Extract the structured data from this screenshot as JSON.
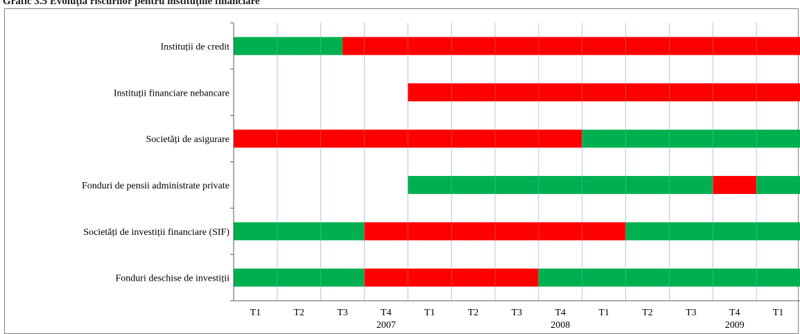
{
  "chart_data": {
    "type": "bar",
    "title": "Grafic 3.5 Evoluția riscurilor pentru instituțiile financiare",
    "categories": [
      "Instituții de credit",
      "Instituții financiare nebancare",
      "Societăți de asigurare",
      "Fonduri de pensii administrate private",
      "Societăți de investiții financiare (SIF)",
      "Fonduri deschise de investiții"
    ],
    "x_ticks": [
      "T1",
      "T2",
      "T3",
      "T4",
      "T1",
      "T2",
      "T3",
      "T4",
      "T1",
      "T2",
      "T3",
      "T4",
      "T1"
    ],
    "year_labels": [
      {
        "label": "2007",
        "quarter_index": 3
      },
      {
        "label": "2008",
        "quarter_index": 7
      },
      {
        "label": "2009",
        "quarter_index": 11
      }
    ],
    "series": [
      {
        "name": "",
        "color": "#00b050"
      },
      {
        "name": "",
        "color": "#ff0000"
      }
    ],
    "rows": [
      {
        "segments": [
          {
            "from": 0,
            "to": 2.5,
            "color": "#00b050"
          },
          {
            "from": 2.5,
            "to": 13,
            "color": "#ff0000"
          }
        ]
      },
      {
        "segments": [
          {
            "from": 4,
            "to": 13,
            "color": "#ff0000"
          }
        ]
      },
      {
        "segments": [
          {
            "from": 0,
            "to": 8,
            "color": "#ff0000"
          },
          {
            "from": 8,
            "to": 13,
            "color": "#00b050"
          }
        ]
      },
      {
        "segments": [
          {
            "from": 4,
            "to": 11,
            "color": "#00b050"
          },
          {
            "from": 11,
            "to": 12,
            "color": "#ff0000"
          },
          {
            "from": 12,
            "to": 13,
            "color": "#00b050"
          }
        ]
      },
      {
        "segments": [
          {
            "from": 0,
            "to": 3,
            "color": "#00b050"
          },
          {
            "from": 3,
            "to": 9,
            "color": "#ff0000"
          },
          {
            "from": 9,
            "to": 13,
            "color": "#00b050"
          }
        ]
      },
      {
        "segments": [
          {
            "from": 0,
            "to": 3,
            "color": "#00b050"
          },
          {
            "from": 3,
            "to": 7,
            "color": "#ff0000"
          },
          {
            "from": 7,
            "to": 13,
            "color": "#00b050"
          }
        ]
      }
    ],
    "xlim": [
      0,
      13
    ],
    "grid": true
  }
}
